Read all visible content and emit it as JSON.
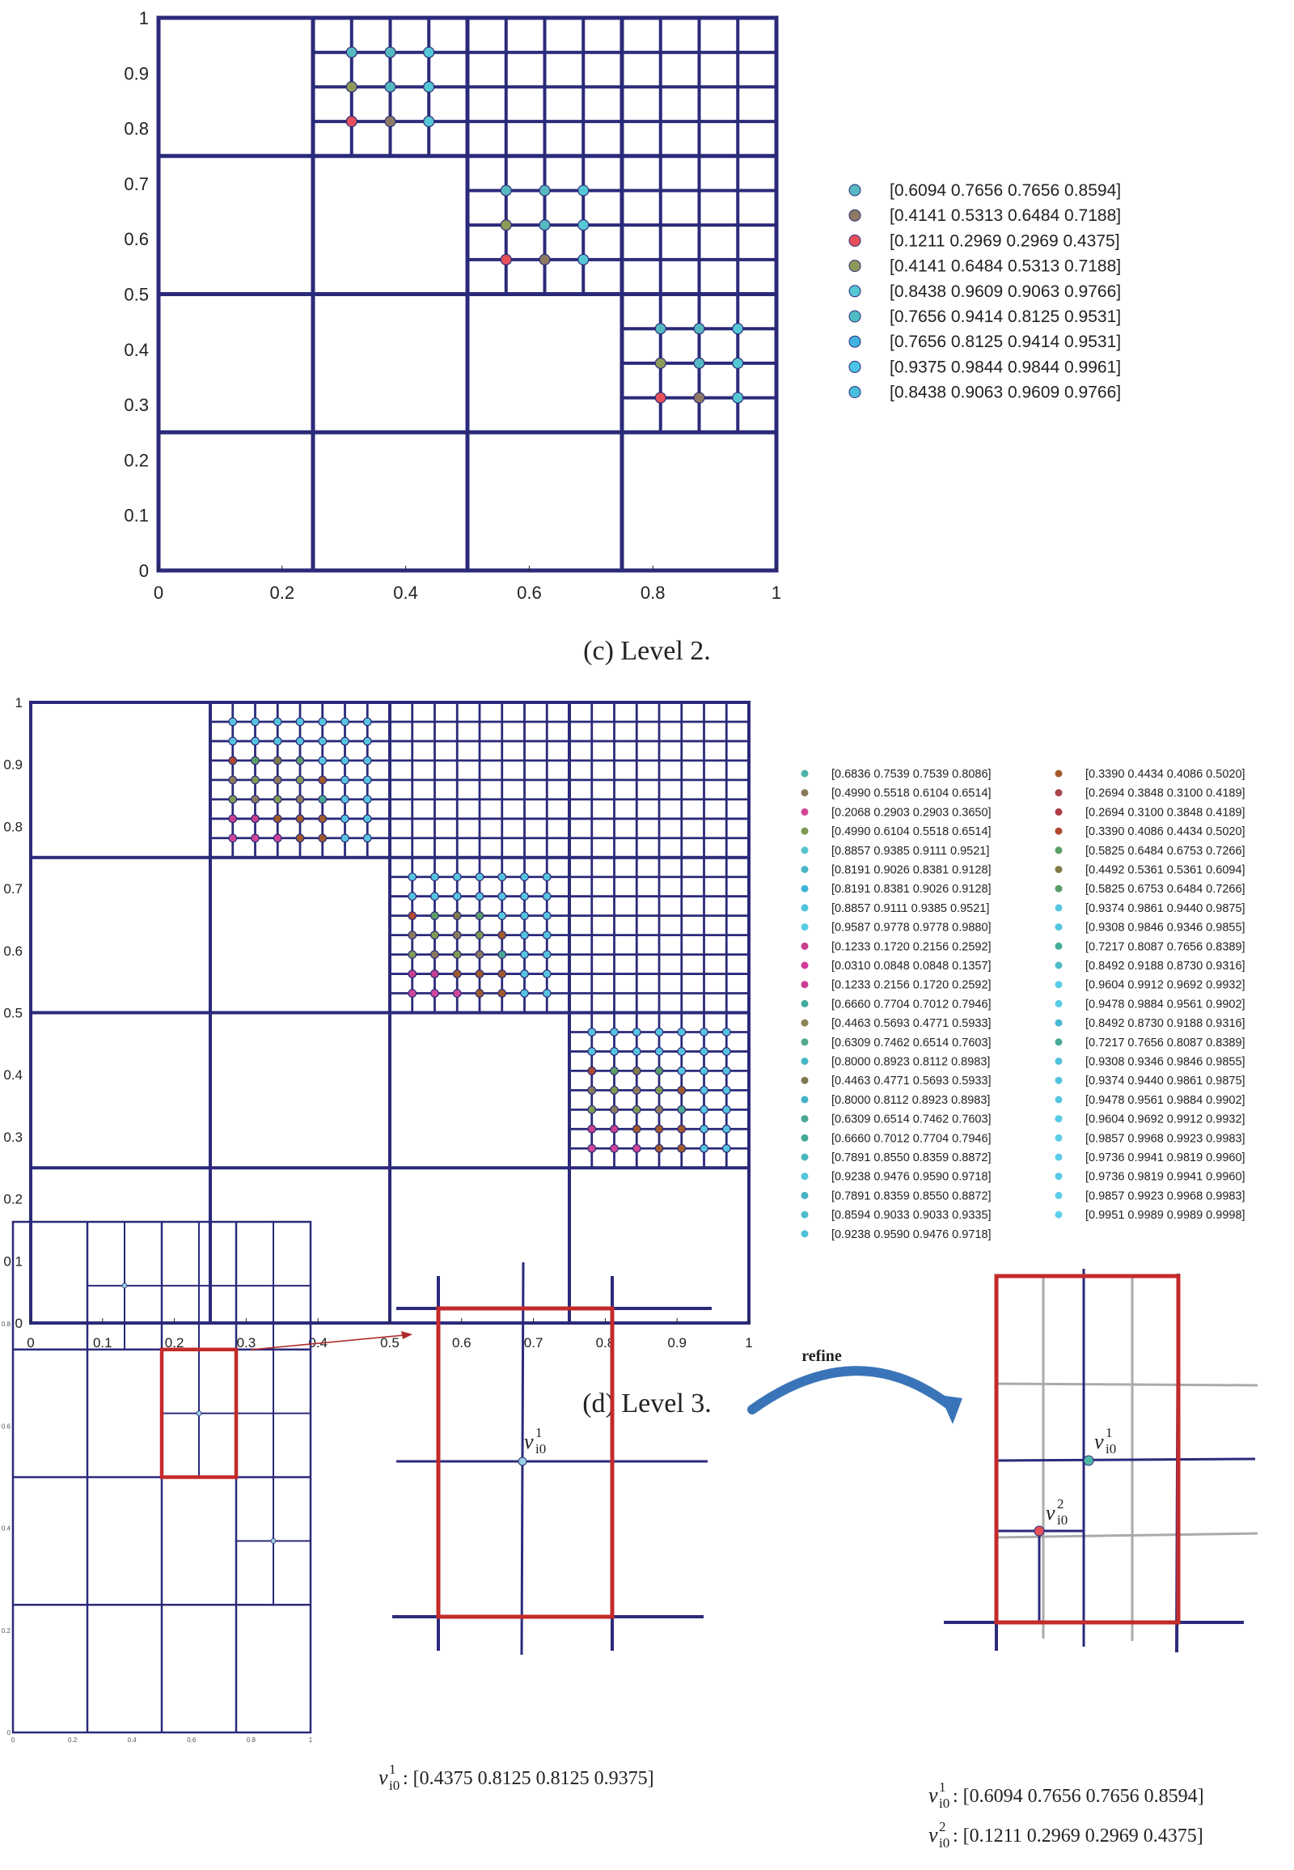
{
  "colors": {
    "grid": "#2b2a7a",
    "highlight": "#c42a2a",
    "ghost": "#aaaaaa",
    "arrow": "#3a74b8"
  },
  "panel_c": {
    "caption": "(c) Level 2.",
    "x_ticks": [
      "0",
      "0.2",
      "0.4",
      "0.6",
      "0.8",
      "1"
    ],
    "y_ticks": [
      "0",
      "0.1",
      "0.2",
      "0.3",
      "0.4",
      "0.5",
      "0.6",
      "0.7",
      "0.8",
      "0.9",
      "1"
    ],
    "legend": [
      {
        "label": "[0.6094 0.7656 0.7656 0.8594]",
        "color": "#56b8c0"
      },
      {
        "label": "[0.4141 0.5313 0.6484 0.7188]",
        "color": "#8d7a63"
      },
      {
        "label": "[0.1211 0.2969 0.2969 0.4375]",
        "color": "#e5505a"
      },
      {
        "label": "[0.4141 0.6484 0.5313 0.7188]",
        "color": "#8e9a58"
      },
      {
        "label": "[0.8438 0.9609 0.9063 0.9766]",
        "color": "#55c7d5"
      },
      {
        "label": "[0.7656 0.9414 0.8125 0.9531]",
        "color": "#4fbcc6"
      },
      {
        "label": "[0.7656 0.8125 0.9414 0.9531]",
        "color": "#3fb2e0"
      },
      {
        "label": "[0.9375 0.9844 0.9844 0.9961]",
        "color": "#4ec6e6"
      },
      {
        "label": "[0.8438 0.9063 0.9609 0.9766]",
        "color": "#48c0dc"
      }
    ]
  },
  "panel_d": {
    "caption": "(d) Level 3.",
    "x_ticks": [
      "0",
      "0.1",
      "0.2",
      "0.3",
      "0.4",
      "0.5",
      "0.6",
      "0.7",
      "0.8",
      "0.9",
      "1"
    ],
    "y_ticks": [
      "0",
      "0.1",
      "0.2",
      "0.3",
      "0.4",
      "0.5",
      "0.6",
      "0.7",
      "0.8",
      "0.9",
      "1"
    ],
    "legend_left": [
      {
        "label": "[0.6836 0.7539 0.7539 0.8086]",
        "color": "#4cb3a8"
      },
      {
        "label": "[0.4990 0.5518 0.6104 0.6514]",
        "color": "#8a7a5c"
      },
      {
        "label": "[0.2068 0.2903 0.2903 0.3650]",
        "color": "#d2469a"
      },
      {
        "label": "[0.4990 0.6104 0.5518 0.6514]",
        "color": "#7f9a52"
      },
      {
        "label": "[0.8857 0.9385 0.9111 0.9521]",
        "color": "#56c4cf"
      },
      {
        "label": "[0.8191 0.9026 0.8381 0.9128]",
        "color": "#4ab7c8"
      },
      {
        "label": "[0.8191 0.8381 0.9026 0.9128]",
        "color": "#42b3d8"
      },
      {
        "label": "[0.8857 0.9111 0.9385 0.9521]",
        "color": "#50c2dc"
      },
      {
        "label": "[0.9587 0.9778 0.9778 0.9880]",
        "color": "#5ccce6"
      },
      {
        "label": "[0.1233 0.1720 0.2156 0.2592]",
        "color": "#c8408e"
      },
      {
        "label": "[0.0310 0.0848 0.0848 0.1357]",
        "color": "#d23a9a"
      },
      {
        "label": "[0.1233 0.2156 0.1720 0.2592]",
        "color": "#cc3c94"
      },
      {
        "label": "[0.6660 0.7704 0.7012 0.7946]",
        "color": "#46ad9e"
      },
      {
        "label": "[0.4463 0.5693 0.4771 0.5933]",
        "color": "#8c8458"
      },
      {
        "label": "[0.6309 0.7462 0.6514 0.7603]",
        "color": "#52ab8c"
      },
      {
        "label": "[0.8000 0.8923 0.8112 0.8983]",
        "color": "#48b8c4"
      },
      {
        "label": "[0.4463 0.4771 0.5693 0.5933]",
        "color": "#7c7a52"
      },
      {
        "label": "[0.8000 0.8112 0.8923 0.8983]",
        "color": "#44b4cc"
      },
      {
        "label": "[0.6309 0.6514 0.7462 0.7603]",
        "color": "#4aa894"
      },
      {
        "label": "[0.6660 0.7012 0.7704 0.7946]",
        "color": "#42a898"
      },
      {
        "label": "[0.7891 0.8550 0.8359 0.8872]",
        "color": "#4ab6c0"
      },
      {
        "label": "[0.9238 0.9476 0.9590 0.9718]",
        "color": "#52c4dc"
      },
      {
        "label": "[0.7891 0.8359 0.8550 0.8872]",
        "color": "#46b2c2"
      },
      {
        "label": "[0.8594 0.9033 0.9033 0.9335]",
        "color": "#4cbccc"
      },
      {
        "label": "[0.9238  0.9590 0.9476 0.9718]",
        "color": "#50c0d8"
      }
    ],
    "legend_right": [
      {
        "label": "[0.3390 0.4434 0.4086 0.5020]",
        "color": "#a05a2c"
      },
      {
        "label": "[0.2694 0.3848 0.3100 0.4189]",
        "color": "#a8444c"
      },
      {
        "label": "[0.2694 0.3100 0.3848 0.4189]",
        "color": "#ac3c46"
      },
      {
        "label": "[0.3390 0.4086 0.4434 0.5020]",
        "color": "#b04a30"
      },
      {
        "label": "[0.5825 0.6484 0.6753 0.7266]",
        "color": "#5aa064"
      },
      {
        "label": "[0.4492 0.5361 0.5361 0.6094]",
        "color": "#807a48"
      },
      {
        "label": "[0.5825 0.6753 0.6484 0.7266]",
        "color": "#5a9c6a"
      },
      {
        "label": "[0.9374 0.9861 0.9440 0.9875]",
        "color": "#58c8e0"
      },
      {
        "label": "[0.9308 0.9846 0.9346 0.9855]",
        "color": "#54c6de"
      },
      {
        "label": "[0.7217 0.8087 0.7656 0.8389]",
        "color": "#44ad9c"
      },
      {
        "label": "[0.8492 0.9188 0.8730 0.9316]",
        "color": "#4ebcc8"
      },
      {
        "label": "[0.9604 0.9912 0.9692 0.9932]",
        "color": "#5ccce6"
      },
      {
        "label": "[0.9478 0.9884 0.9561 0.9902]",
        "color": "#58cae2"
      },
      {
        "label": "[0.8492 0.8730 0.9188 0.9316]",
        "color": "#4ab8d0"
      },
      {
        "label": "[0.7217 0.7656 0.8087 0.8389]",
        "color": "#48aa98"
      },
      {
        "label": "[0.9308 0.9346 0.9846 0.9855]",
        "color": "#52c2dc"
      },
      {
        "label": "[0.9374 0.9440 0.9861 0.9875]",
        "color": "#54c4de"
      },
      {
        "label": "[0.9478 0.9561 0.9884 0.9902]",
        "color": "#56c6e0"
      },
      {
        "label": "[0.9604 0.9692 0.9912 0.9932]",
        "color": "#58cae4"
      },
      {
        "label": "[0.9857 0.9968 0.9923 0.9983]",
        "color": "#5ccee8"
      },
      {
        "label": "[0.9736 0.9941 0.9819 0.9960]",
        "color": "#5accea"
      },
      {
        "label": "[0.9736 0.9819 0.9941 0.9960]",
        "color": "#58cae8"
      },
      {
        "label": "[0.9857 0.9923 0.9968 0.9983]",
        "color": "#5ccee8"
      },
      {
        "label": "[0.9951 0.9989 0.9989 0.9998]",
        "color": "#60d0ea"
      }
    ]
  },
  "panel_e": {
    "mini_x_ticks": [
      "0",
      "0.2",
      "0.4",
      "0.6",
      "0.8",
      "1"
    ],
    "mini_y_ticks": [
      "0",
      "0.2",
      "0.4",
      "0.6",
      "0.8"
    ],
    "refine_label": "refine",
    "vertex_symbol": "v",
    "vertex_1_super": "1",
    "vertex_2_super": "2",
    "vertex_sub": "i0",
    "coords_middle": ": [0.4375 0.8125 0.8125 0.9375]",
    "coords_right_1": ": [0.6094 0.7656 0.7656 0.8594]",
    "coords_right_2": ": [0.1211  0.2969  0.2969  0.4375]",
    "vertex_1_color": "#4fb8a6",
    "vertex_2_color": "#e5505a",
    "vertex_mid_color": "#9ad0e0"
  }
}
